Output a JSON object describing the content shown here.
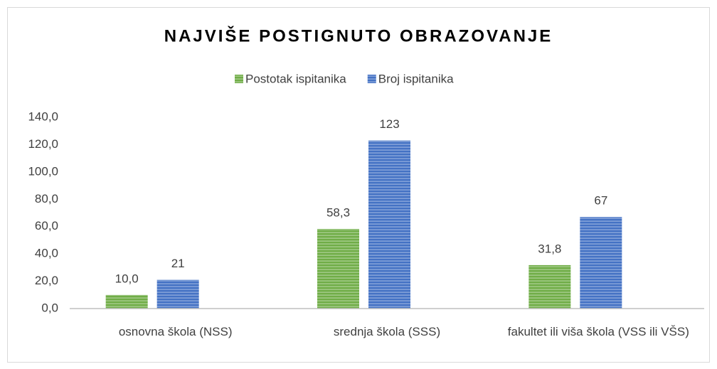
{
  "chart_data": {
    "type": "bar",
    "title": "NAJVIŠE POSTIGNUTO OBRAZOVANJE",
    "categories": [
      "osnovna škola (NSS)",
      "srednja škola (SSS)",
      "fakultet ili viša škola (VSS ili VŠS)"
    ],
    "series": [
      {
        "name": "Postotak ispitanika",
        "color": "#70ad47",
        "values": [
          10.0,
          58.3,
          31.8
        ],
        "value_labels": [
          "10,0",
          "58,3",
          "31,8"
        ]
      },
      {
        "name": "Broj ispitanika",
        "color": "#4472c4",
        "values": [
          21,
          123,
          67
        ]
      }
    ],
    "ylim": [
      0,
      140
    ],
    "yticks": [
      {
        "value": 0,
        "label": "0,0"
      },
      {
        "value": 20,
        "label": "20,0"
      },
      {
        "value": 40,
        "label": "40,0"
      },
      {
        "value": 60,
        "label": "60,0"
      },
      {
        "value": 80,
        "label": "80,0"
      },
      {
        "value": 100,
        "label": "100,0"
      },
      {
        "value": 120,
        "label": "120,0"
      },
      {
        "value": 140,
        "label": "140,0"
      }
    ],
    "grid": false,
    "legend": "top"
  }
}
